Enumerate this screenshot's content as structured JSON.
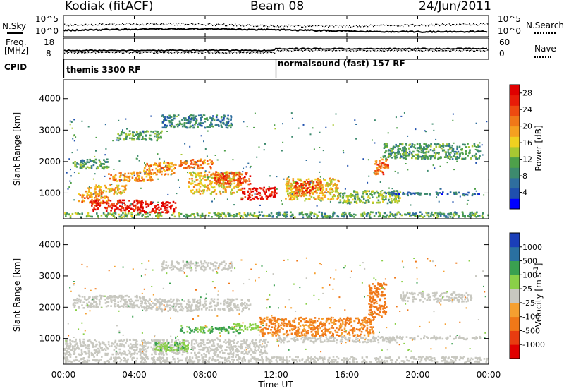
{
  "header": {
    "station": "Kodiak (fitACF)",
    "beam": "Beam 08",
    "date": "24/Jun/2011"
  },
  "noise_panel": {
    "left_label": "N.Sky",
    "right_label": "N.Search",
    "left_ticks": [
      "10^5",
      "10^0"
    ],
    "right_ticks": [
      "10^5",
      "10^0"
    ]
  },
  "freq_panel": {
    "left_label_1": "Freq.",
    "left_label_2": "[MHz]",
    "right_label": "Nave",
    "left_ticks": [
      "18",
      "8"
    ],
    "right_ticks": [
      "60",
      "0"
    ]
  },
  "cpid": {
    "label": "CPID",
    "segments": [
      {
        "name": "themis 3300 RF",
        "start_hour": 0
      },
      {
        "name": "normalsound (fast) 157 RF",
        "start_hour": 12
      }
    ]
  },
  "time_axis": {
    "label": "Time UT",
    "ticks": [
      "00:00",
      "04:00",
      "08:00",
      "12:00",
      "16:00",
      "20:00",
      "00:00"
    ],
    "range_hours": [
      0,
      24
    ]
  },
  "chart_data": [
    {
      "type": "heatmap",
      "ylabel": "Slant Range [km]",
      "yticks": [
        "1000",
        "2000",
        "3000",
        "4000"
      ],
      "ylim": [
        180,
        4600
      ],
      "xlim": [
        0,
        24
      ],
      "colorbar": {
        "label": "Power [dB]",
        "ticks": [
          "28",
          "24",
          "20",
          "16",
          "12",
          "8",
          "4"
        ],
        "range": [
          0,
          30
        ],
        "colors": [
          "#0000ff",
          "#1f4fae",
          "#2f6e9e",
          "#3d8a6e",
          "#4ea04a",
          "#a8c832",
          "#f0d020",
          "#f5a020",
          "#f07818",
          "#ee4a10",
          "#e81c08",
          "#e00000"
        ]
      },
      "regions": [
        {
          "t": [
            0.0,
            11.0
          ],
          "r": [
            250,
            400
          ],
          "value": 12
        },
        {
          "t": [
            11.0,
            24.0
          ],
          "r": [
            250,
            420
          ],
          "value": 10
        },
        {
          "t": [
            0.8,
            2.5
          ],
          "r": [
            700,
            1000
          ],
          "value": 20
        },
        {
          "t": [
            1.5,
            4.5
          ],
          "r": [
            450,
            800
          ],
          "value": 27
        },
        {
          "t": [
            4.2,
            6.3
          ],
          "r": [
            400,
            750
          ],
          "value": 28
        },
        {
          "t": [
            1.2,
            3.5
          ],
          "r": [
            1000,
            1300
          ],
          "value": 18
        },
        {
          "t": [
            2.5,
            5.0
          ],
          "r": [
            1400,
            1700
          ],
          "value": 20
        },
        {
          "t": [
            4.5,
            6.3
          ],
          "r": [
            1600,
            2000
          ],
          "value": 20
        },
        {
          "t": [
            6.5,
            8.5
          ],
          "r": [
            1800,
            2100
          ],
          "value": 21
        },
        {
          "t": [
            7.0,
            10.0
          ],
          "r": [
            1000,
            1700
          ],
          "value": 17
        },
        {
          "t": [
            8.5,
            10.5
          ],
          "r": [
            1300,
            1700
          ],
          "value": 24
        },
        {
          "t": [
            10.0,
            12.0
          ],
          "r": [
            800,
            1200
          ],
          "value": 28
        },
        {
          "t": [
            12.5,
            15.5
          ],
          "r": [
            800,
            1500
          ],
          "value": 17
        },
        {
          "t": [
            13.0,
            14.5
          ],
          "r": [
            1000,
            1400
          ],
          "value": 25
        },
        {
          "t": [
            15.5,
            19.0
          ],
          "r": [
            700,
            1100
          ],
          "value": 12
        },
        {
          "t": [
            17.5,
            18.3
          ],
          "r": [
            1600,
            2100
          ],
          "value": 22
        },
        {
          "t": [
            18.0,
            23.5
          ],
          "r": [
            950,
            1050
          ],
          "value": 6
        },
        {
          "t": [
            18.0,
            23.5
          ],
          "r": [
            2100,
            2600
          ],
          "value": 10
        },
        {
          "t": [
            0.5,
            2.5
          ],
          "r": [
            1800,
            2100
          ],
          "value": 10
        },
        {
          "t": [
            3.0,
            5.5
          ],
          "r": [
            2700,
            3000
          ],
          "value": 11
        },
        {
          "t": [
            5.5,
            9.5
          ],
          "r": [
            3100,
            3500
          ],
          "value": 8
        }
      ]
    },
    {
      "type": "heatmap",
      "ylabel": "Slant Range [km]",
      "yticks": [
        "1000",
        "2000",
        "3000",
        "4000"
      ],
      "ylim": [
        180,
        4600
      ],
      "xlim": [
        0,
        24
      ],
      "colorbar": {
        "label": "Velocity [m s",
        "label_sup": "-1",
        "label_end": "]",
        "ticks": [
          "1000",
          "500",
          "100",
          "25",
          "-25",
          "-100",
          "-500",
          "-1000"
        ],
        "colors": [
          "#e00000",
          "#e83c10",
          "#f07818",
          "#f5a030",
          "#c8c8c0",
          "#8ad048",
          "#3aa050",
          "#2a70a0",
          "#1a3eb8"
        ]
      },
      "regions": [
        {
          "t": [
            0.0,
            24.0
          ],
          "r": [
            250,
            450
          ],
          "value": 0
        },
        {
          "t": [
            0.0,
            11.5
          ],
          "r": [
            500,
            1000
          ],
          "value": 0
        },
        {
          "t": [
            0.5,
            4.5
          ],
          "r": [
            2000,
            2400
          ],
          "value": 0
        },
        {
          "t": [
            4.5,
            10.5
          ],
          "r": [
            1900,
            2300
          ],
          "value": 0
        },
        {
          "t": [
            5.0,
            7.0
          ],
          "r": [
            600,
            900
          ],
          "value": 80
        },
        {
          "t": [
            6.5,
            10.0
          ],
          "r": [
            1200,
            1400
          ],
          "value": 120
        },
        {
          "t": [
            9.5,
            11.0
          ],
          "r": [
            1300,
            1500
          ],
          "value": 70
        },
        {
          "t": [
            11.0,
            17.5
          ],
          "r": [
            1100,
            1700
          ],
          "value": -120
        },
        {
          "t": [
            17.2,
            18.2
          ],
          "r": [
            1700,
            2800
          ],
          "value": -300
        },
        {
          "t": [
            12.0,
            19.0
          ],
          "r": [
            900,
            1100
          ],
          "value": 0
        },
        {
          "t": [
            18.0,
            23.5
          ],
          "r": [
            1000,
            1100
          ],
          "value": 0
        },
        {
          "t": [
            19.0,
            23.0
          ],
          "r": [
            2200,
            2500
          ],
          "value": 0
        },
        {
          "t": [
            5.5,
            9.5
          ],
          "r": [
            3200,
            3500
          ],
          "value": 0
        }
      ]
    }
  ]
}
